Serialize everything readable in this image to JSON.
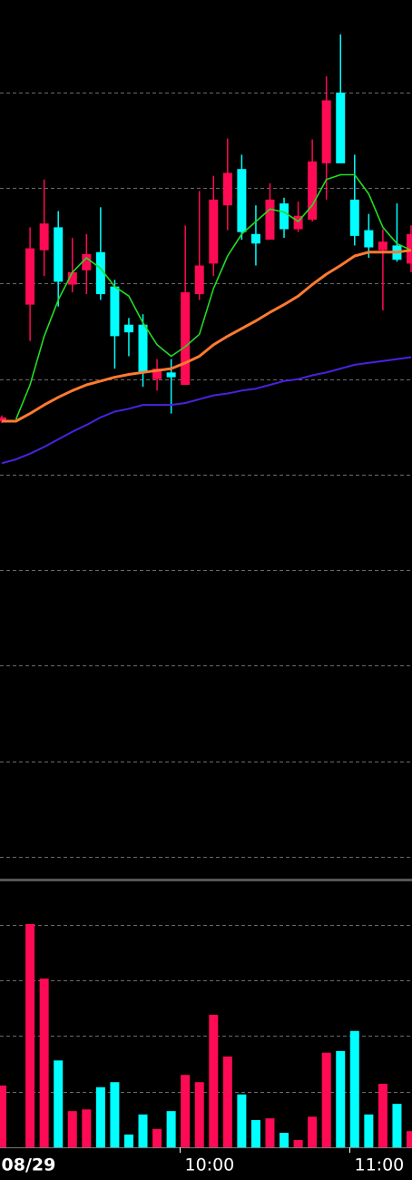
{
  "chart_data": {
    "type": "candlestick",
    "categories": [
      "08/29",
      null,
      null,
      null,
      null,
      null,
      null,
      null,
      null,
      null,
      null,
      null,
      null,
      "10:00",
      null,
      null,
      null,
      null,
      null,
      null,
      null,
      null,
      null,
      null,
      null,
      "11:00",
      null,
      null,
      null,
      null
    ],
    "open": [
      556,
      null,
      678,
      735,
      759,
      699,
      714,
      733,
      697,
      657,
      657,
      600,
      607,
      594,
      689,
      721,
      782,
      820,
      752,
      746,
      784,
      757,
      767,
      826,
      900,
      788,
      756,
      735,
      740,
      721
    ],
    "high": [
      562,
      null,
      759,
      809,
      776,
      748,
      752,
      780,
      704,
      664,
      668,
      621,
      621,
      761,
      797,
      813,
      852,
      835,
      782,
      805,
      790,
      786,
      851,
      917,
      961,
      835,
      773,
      757,
      784,
      761
    ],
    "low": [
      554,
      null,
      640,
      708,
      676,
      691,
      689,
      683,
      611,
      624,
      592,
      588,
      564,
      594,
      683,
      708,
      756,
      746,
      719,
      746,
      748,
      754,
      765,
      788,
      826,
      740,
      727,
      672,
      723,
      712
    ],
    "close": [
      560,
      null,
      737,
      763,
      702,
      712,
      731,
      689,
      645,
      649,
      607,
      611,
      602,
      691,
      719,
      788,
      816,
      754,
      742,
      788,
      757,
      771,
      828,
      892,
      826,
      750,
      738,
      744,
      725,
      752
    ],
    "up_color": "#ff0a54",
    "down_color": "#00ffff",
    "series": [
      {
        "color": "#22dd22",
        "width": 1.6,
        "values": [
          null,
          558,
          594,
          645,
          683,
          712,
          727,
          716,
          697,
          687,
          659,
          636,
          624,
          634,
          647,
          695,
          729,
          752,
          765,
          778,
          775,
          765,
          782,
          809,
          814,
          814,
          794,
          759,
          742,
          735
        ]
      },
      {
        "color": "#ff7a30",
        "width": 3,
        "values": [
          556,
          556,
          564,
          573,
          581,
          588,
          594,
          598,
          602,
          605,
          607,
          609,
          611,
          617,
          624,
          636,
          645,
          653,
          661,
          670,
          678,
          687,
          699,
          710,
          719,
          729,
          733,
          733,
          733,
          735
        ]
      },
      {
        "color": "#4a22e0",
        "width": 2,
        "values": [
          512,
          516,
          522,
          529,
          537,
          545,
          552,
          560,
          566,
          569,
          573,
          573,
          573,
          575,
          579,
          583,
          585,
          588,
          590,
          594,
          598,
          600,
          604,
          607,
          611,
          615,
          617,
          619,
          621,
          623
        ]
      }
    ],
    "ylim": [
      77,
      997
    ],
    "yticks": [
      100,
      200,
      300,
      400,
      500,
      600,
      700,
      800,
      900
    ],
    "volume": [
      111,
      null,
      401,
      303,
      156,
      65,
      68,
      108,
      117,
      23,
      59,
      33,
      65,
      130,
      117,
      238,
      163,
      95,
      49,
      52,
      26,
      13,
      55,
      170,
      173,
      209,
      59,
      114,
      78,
      29
    ],
    "vlim": [
      0,
      476
    ],
    "vticks": [
      100,
      200,
      300,
      400
    ],
    "grid": true
  }
}
